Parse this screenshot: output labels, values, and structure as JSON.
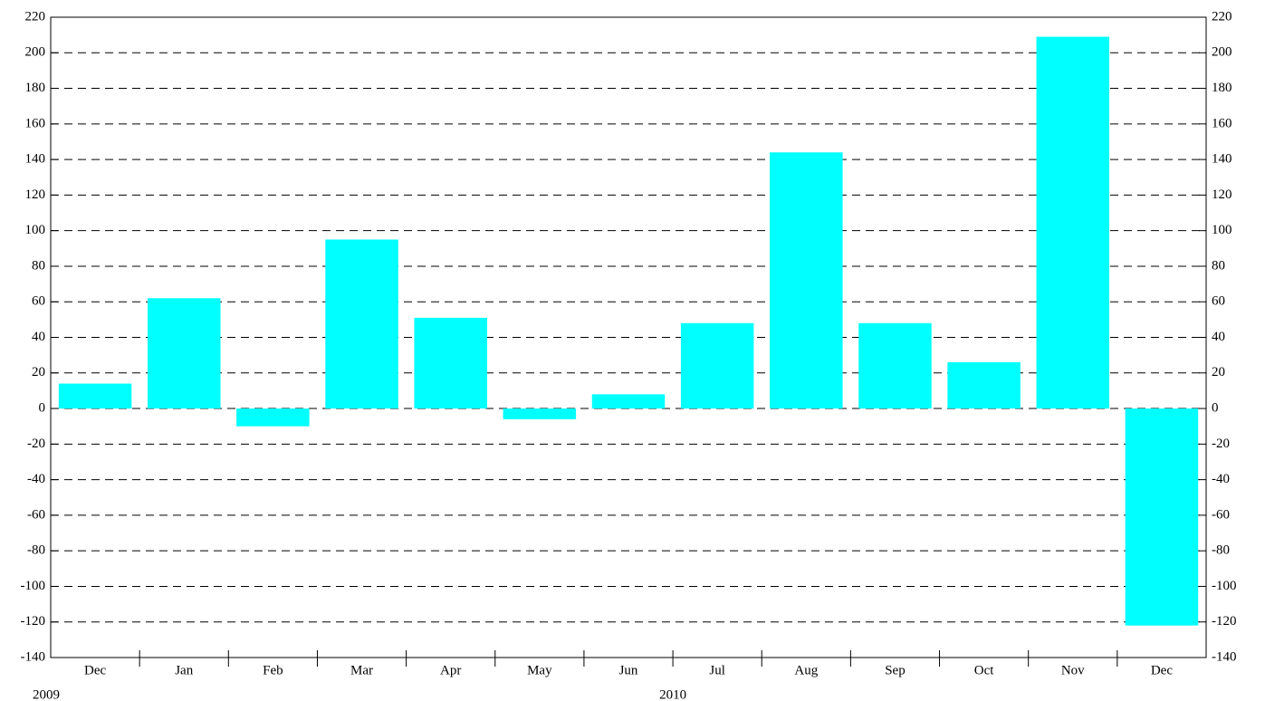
{
  "chart_data": {
    "type": "bar",
    "categories": [
      "Dec",
      "Jan",
      "Feb",
      "Mar",
      "Apr",
      "May",
      "Jun",
      "Jul",
      "Aug",
      "Sep",
      "Oct",
      "Nov",
      "Dec"
    ],
    "values": [
      14,
      62,
      -10,
      95,
      51,
      -6,
      8,
      48,
      144,
      48,
      26,
      209,
      -122
    ],
    "color": "#00ffff",
    "annotations": [
      "2009",
      "2010"
    ],
    "ylim": [
      -140,
      220
    ],
    "yticks": [
      -140,
      -120,
      -100,
      -80,
      -60,
      -40,
      -20,
      0,
      20,
      40,
      60,
      80,
      100,
      120,
      140,
      160,
      180,
      200,
      220
    ],
    "grid": true
  }
}
